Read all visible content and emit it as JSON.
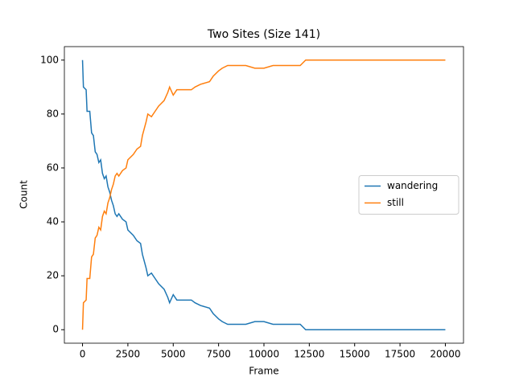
{
  "chart_data": {
    "type": "line",
    "title": "Two Sites (Size 141)",
    "xlabel": "Frame",
    "ylabel": "Count",
    "x": [
      0,
      50,
      200,
      250,
      400,
      450,
      500,
      600,
      700,
      800,
      900,
      1000,
      1100,
      1200,
      1300,
      1400,
      1500,
      1600,
      1700,
      1800,
      1900,
      2000,
      2200,
      2400,
      2500,
      2800,
      3000,
      3200,
      3300,
      3500,
      3600,
      3800,
      4000,
      4200,
      4500,
      4700,
      4800,
      5000,
      5200,
      5500,
      6000,
      6200,
      6500,
      7000,
      7200,
      7500,
      7700,
      8000,
      9000,
      9500,
      10000,
      10500,
      11000,
      12000,
      12300,
      13000,
      20000
    ],
    "series": [
      {
        "name": "wandering",
        "color": "#1f77b4",
        "values": [
          100,
          90,
          89,
          81,
          81,
          77,
          73,
          72,
          66,
          65,
          62,
          63,
          58,
          56,
          57,
          53,
          51,
          48,
          46,
          43,
          42,
          43,
          41,
          40,
          37,
          35,
          33,
          32,
          28,
          23,
          20,
          21,
          19,
          17,
          15,
          12,
          10,
          13,
          11,
          11,
          11,
          10,
          9,
          8,
          6,
          4,
          3,
          2,
          2,
          3,
          3,
          2,
          2,
          2,
          0,
          0,
          0
        ]
      },
      {
        "name": "still",
        "color": "#ff7f0e",
        "values": [
          0,
          10,
          11,
          19,
          19,
          23,
          27,
          28,
          34,
          35,
          38,
          37,
          42,
          44,
          43,
          47,
          49,
          52,
          54,
          57,
          58,
          57,
          59,
          60,
          63,
          65,
          67,
          68,
          72,
          77,
          80,
          79,
          81,
          83,
          85,
          88,
          90,
          87,
          89,
          89,
          89,
          90,
          91,
          92,
          94,
          96,
          97,
          98,
          98,
          97,
          97,
          98,
          98,
          98,
          100,
          100,
          100
        ]
      }
    ],
    "xlim": [
      -1000,
      21000
    ],
    "ylim": [
      -5,
      105
    ],
    "xticks": [
      0,
      2500,
      5000,
      7500,
      10000,
      12500,
      15000,
      17500,
      20000
    ],
    "yticks": [
      0,
      20,
      40,
      60,
      80,
      100
    ],
    "legend": "right"
  }
}
